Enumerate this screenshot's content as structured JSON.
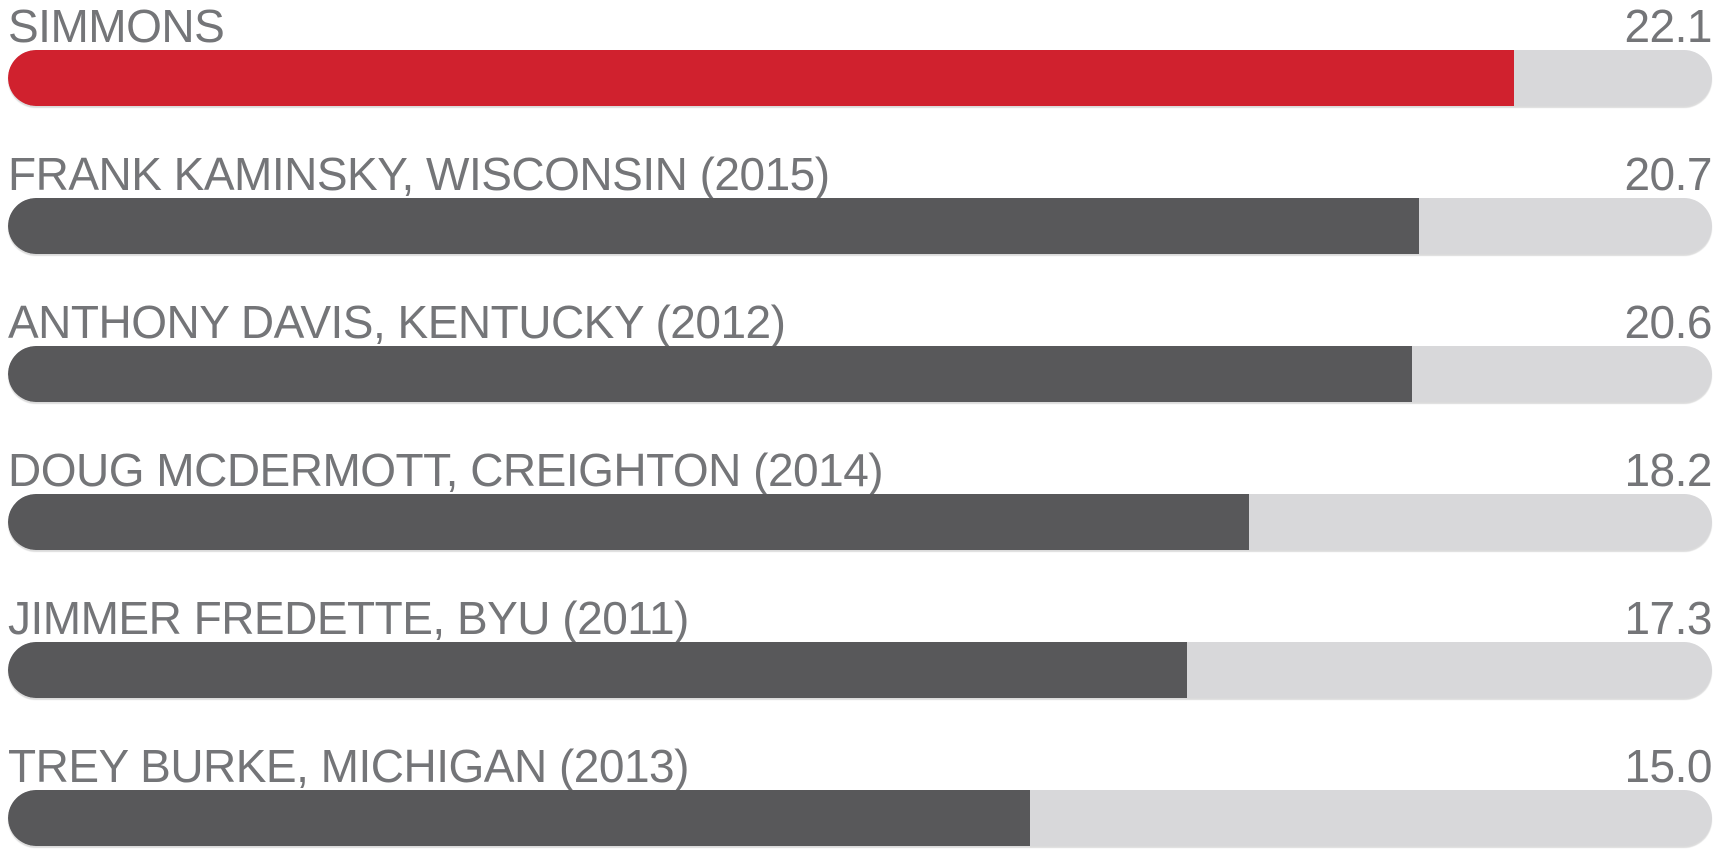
{
  "chart_data": {
    "type": "bar",
    "orientation": "horizontal",
    "title": "",
    "categories": [
      "SIMMONS",
      "FRANK KAMINSKY, WISCONSIN (2015)",
      "ANTHONY DAVIS, KENTUCKY (2012)",
      "DOUG MCDERMOTT, CREIGHTON (2014)",
      "JIMMER FREDETTE, BYU (2011)",
      "TREY BURKE, MICHIGAN (2013)"
    ],
    "values": [
      22.1,
      20.7,
      20.6,
      18.2,
      17.3,
      15.0
    ],
    "value_labels": [
      "22.1",
      "20.7",
      "20.6",
      "18.2",
      "17.3",
      "15.0"
    ],
    "xlim": [
      0,
      25
    ],
    "grid": false,
    "legend": false,
    "highlight_index": 0,
    "colors": {
      "highlight_bar": "#d0212e",
      "bar": "#58585a",
      "track": "#d8d8da",
      "text": "#747578",
      "background": "#ffffff"
    }
  }
}
